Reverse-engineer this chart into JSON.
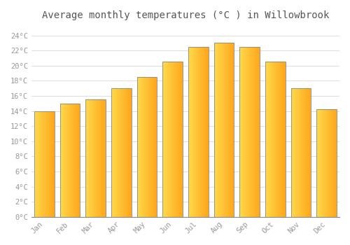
{
  "months": [
    "Jan",
    "Feb",
    "Mar",
    "Apr",
    "May",
    "Jun",
    "Jul",
    "Aug",
    "Sep",
    "Oct",
    "Nov",
    "Dec"
  ],
  "values": [
    14.0,
    15.0,
    15.5,
    17.0,
    18.5,
    20.5,
    22.5,
    23.0,
    22.5,
    20.5,
    17.0,
    14.2
  ],
  "bar_color_left": "#FFCC44",
  "bar_color_right": "#FFA500",
  "bar_color_edge": "#888888",
  "background_color": "#FFFFFF",
  "grid_color": "#DDDDDD",
  "title": "Average monthly temperatures (°C ) in Willowbrook",
  "title_fontsize": 10,
  "ylabel_ticks": [
    "0°C",
    "2°C",
    "4°C",
    "6°C",
    "8°C",
    "10°C",
    "12°C",
    "14°C",
    "16°C",
    "18°C",
    "20°C",
    "22°C",
    "24°C"
  ],
  "ytick_values": [
    0,
    2,
    4,
    6,
    8,
    10,
    12,
    14,
    16,
    18,
    20,
    22,
    24
  ],
  "ylim": [
    0,
    25.5
  ],
  "tick_fontsize": 7.5,
  "tick_color": "#999999",
  "title_color": "#555555",
  "font_family": "monospace",
  "bar_width": 0.78,
  "gradient_steps": 50
}
